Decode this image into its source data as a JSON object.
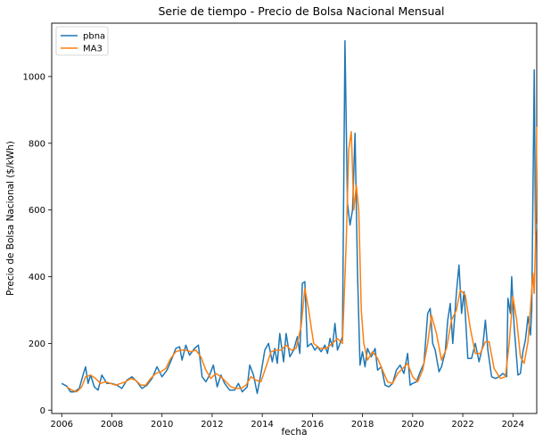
{
  "chart_data": {
    "type": "line",
    "title": "Serie de tiempo - Precio de Bolsa Nacional Mensual",
    "xlabel": "fecha",
    "ylabel": "Precio de Bolsa Nacional ($/kWh)",
    "xlim": [
      2005.6,
      2024.95
    ],
    "ylim": [
      -10,
      1160
    ],
    "x_ticks": [
      2006,
      2008,
      2010,
      2012,
      2014,
      2016,
      2018,
      2020,
      2022,
      2024
    ],
    "x_tick_labels": [
      "2006",
      "2008",
      "2010",
      "2012",
      "2014",
      "2016",
      "2018",
      "2020",
      "2022",
      "2024"
    ],
    "y_ticks": [
      0,
      200,
      400,
      600,
      800,
      1000
    ],
    "y_tick_labels": [
      "0",
      "200",
      "400",
      "600",
      "800",
      "1000"
    ],
    "grid": false,
    "legend": {
      "position": "top-left"
    },
    "series": [
      {
        "name": "pbna",
        "color": "#1f77b4",
        "points": [
          [
            2006.0,
            80
          ],
          [
            2006.2,
            72
          ],
          [
            2006.35,
            55
          ],
          [
            2006.5,
            55
          ],
          [
            2006.7,
            65
          ],
          [
            2006.85,
            105
          ],
          [
            2006.95,
            130
          ],
          [
            2007.05,
            80
          ],
          [
            2007.15,
            105
          ],
          [
            2007.3,
            70
          ],
          [
            2007.45,
            60
          ],
          [
            2007.6,
            105
          ],
          [
            2007.8,
            80
          ],
          [
            2008.0,
            80
          ],
          [
            2008.2,
            75
          ],
          [
            2008.4,
            65
          ],
          [
            2008.6,
            90
          ],
          [
            2008.8,
            100
          ],
          [
            2009.0,
            85
          ],
          [
            2009.2,
            65
          ],
          [
            2009.4,
            75
          ],
          [
            2009.6,
            95
          ],
          [
            2009.8,
            130
          ],
          [
            2010.0,
            100
          ],
          [
            2010.2,
            120
          ],
          [
            2010.4,
            155
          ],
          [
            2010.55,
            185
          ],
          [
            2010.7,
            190
          ],
          [
            2010.8,
            150
          ],
          [
            2010.95,
            195
          ],
          [
            2011.1,
            165
          ],
          [
            2011.3,
            185
          ],
          [
            2011.45,
            195
          ],
          [
            2011.6,
            100
          ],
          [
            2011.75,
            85
          ],
          [
            2011.9,
            105
          ],
          [
            2012.05,
            135
          ],
          [
            2012.2,
            70
          ],
          [
            2012.35,
            105
          ],
          [
            2012.5,
            80
          ],
          [
            2012.7,
            60
          ],
          [
            2012.9,
            60
          ],
          [
            2013.05,
            80
          ],
          [
            2013.2,
            55
          ],
          [
            2013.4,
            70
          ],
          [
            2013.5,
            135
          ],
          [
            2013.65,
            105
          ],
          [
            2013.8,
            50
          ],
          [
            2013.95,
            110
          ],
          [
            2014.1,
            180
          ],
          [
            2014.25,
            200
          ],
          [
            2014.4,
            145
          ],
          [
            2014.5,
            185
          ],
          [
            2014.6,
            140
          ],
          [
            2014.7,
            230
          ],
          [
            2014.85,
            145
          ],
          [
            2014.95,
            230
          ],
          [
            2015.1,
            160
          ],
          [
            2015.25,
            180
          ],
          [
            2015.4,
            220
          ],
          [
            2015.5,
            170
          ],
          [
            2015.6,
            380
          ],
          [
            2015.7,
            385
          ],
          [
            2015.8,
            190
          ],
          [
            2015.95,
            200
          ],
          [
            2016.1,
            180
          ],
          [
            2016.2,
            190
          ],
          [
            2016.35,
            175
          ],
          [
            2016.5,
            195
          ],
          [
            2016.6,
            170
          ],
          [
            2016.7,
            215
          ],
          [
            2016.8,
            190
          ],
          [
            2016.9,
            260
          ],
          [
            2017.0,
            180
          ],
          [
            2017.1,
            200
          ],
          [
            2017.2,
            220
          ],
          [
            2017.3,
            1107
          ],
          [
            2017.4,
            620
          ],
          [
            2017.5,
            555
          ],
          [
            2017.6,
            600
          ],
          [
            2017.7,
            830
          ],
          [
            2017.8,
            410
          ],
          [
            2017.9,
            135
          ],
          [
            2018.0,
            175
          ],
          [
            2018.1,
            130
          ],
          [
            2018.2,
            185
          ],
          [
            2018.35,
            160
          ],
          [
            2018.5,
            185
          ],
          [
            2018.6,
            120
          ],
          [
            2018.75,
            130
          ],
          [
            2018.9,
            75
          ],
          [
            2019.05,
            70
          ],
          [
            2019.2,
            80
          ],
          [
            2019.35,
            120
          ],
          [
            2019.5,
            135
          ],
          [
            2019.65,
            110
          ],
          [
            2019.8,
            170
          ],
          [
            2019.9,
            75
          ],
          [
            2020.0,
            80
          ],
          [
            2020.15,
            85
          ],
          [
            2020.3,
            115
          ],
          [
            2020.45,
            140
          ],
          [
            2020.6,
            290
          ],
          [
            2020.7,
            305
          ],
          [
            2020.8,
            200
          ],
          [
            2020.9,
            180
          ],
          [
            2021.05,
            115
          ],
          [
            2021.15,
            130
          ],
          [
            2021.3,
            175
          ],
          [
            2021.4,
            270
          ],
          [
            2021.5,
            320
          ],
          [
            2021.6,
            200
          ],
          [
            2021.75,
            355
          ],
          [
            2021.85,
            435
          ],
          [
            2021.95,
            290
          ],
          [
            2022.05,
            355
          ],
          [
            2022.2,
            155
          ],
          [
            2022.35,
            155
          ],
          [
            2022.5,
            200
          ],
          [
            2022.65,
            145
          ],
          [
            2022.8,
            195
          ],
          [
            2022.9,
            270
          ],
          [
            2023.0,
            180
          ],
          [
            2023.15,
            100
          ],
          [
            2023.3,
            95
          ],
          [
            2023.45,
            100
          ],
          [
            2023.6,
            110
          ],
          [
            2023.75,
            100
          ],
          [
            2023.8,
            335
          ],
          [
            2023.9,
            290
          ],
          [
            2023.95,
            400
          ],
          [
            2024.05,
            250
          ],
          [
            2024.2,
            105
          ],
          [
            2024.3,
            110
          ],
          [
            2024.4,
            175
          ],
          [
            2024.5,
            210
          ],
          [
            2024.6,
            280
          ],
          [
            2024.7,
            225
          ],
          [
            2024.75,
            300
          ],
          [
            2024.85,
            1020
          ],
          [
            2024.9,
            525
          ],
          [
            2024.95,
            560
          ]
        ]
      },
      {
        "name": "MA3",
        "color": "#ff7f0e",
        "points": [
          [
            2006.2,
            70
          ],
          [
            2006.4,
            60
          ],
          [
            2006.6,
            55
          ],
          [
            2006.8,
            70
          ],
          [
            2006.95,
            100
          ],
          [
            2007.15,
            105
          ],
          [
            2007.35,
            95
          ],
          [
            2007.55,
            80
          ],
          [
            2007.75,
            85
          ],
          [
            2007.95,
            80
          ],
          [
            2008.15,
            75
          ],
          [
            2008.35,
            80
          ],
          [
            2008.55,
            85
          ],
          [
            2008.75,
            95
          ],
          [
            2008.95,
            90
          ],
          [
            2009.15,
            75
          ],
          [
            2009.35,
            75
          ],
          [
            2009.55,
            95
          ],
          [
            2009.75,
            110
          ],
          [
            2009.95,
            115
          ],
          [
            2010.15,
            125
          ],
          [
            2010.35,
            155
          ],
          [
            2010.55,
            175
          ],
          [
            2010.75,
            180
          ],
          [
            2010.95,
            180
          ],
          [
            2011.15,
            175
          ],
          [
            2011.35,
            180
          ],
          [
            2011.55,
            160
          ],
          [
            2011.75,
            120
          ],
          [
            2011.95,
            95
          ],
          [
            2012.15,
            110
          ],
          [
            2012.35,
            100
          ],
          [
            2012.55,
            85
          ],
          [
            2012.75,
            70
          ],
          [
            2012.95,
            65
          ],
          [
            2013.15,
            65
          ],
          [
            2013.35,
            75
          ],
          [
            2013.55,
            100
          ],
          [
            2013.75,
            90
          ],
          [
            2013.95,
            85
          ],
          [
            2014.15,
            130
          ],
          [
            2014.35,
            175
          ],
          [
            2014.55,
            180
          ],
          [
            2014.75,
            180
          ],
          [
            2014.95,
            195
          ],
          [
            2015.15,
            180
          ],
          [
            2015.35,
            185
          ],
          [
            2015.55,
            250
          ],
          [
            2015.7,
            365
          ],
          [
            2015.85,
            300
          ],
          [
            2016.05,
            200
          ],
          [
            2016.3,
            185
          ],
          [
            2016.55,
            185
          ],
          [
            2016.8,
            200
          ],
          [
            2017.0,
            215
          ],
          [
            2017.2,
            200
          ],
          [
            2017.35,
            500
          ],
          [
            2017.45,
            780
          ],
          [
            2017.55,
            835
          ],
          [
            2017.65,
            600
          ],
          [
            2017.75,
            675
          ],
          [
            2017.85,
            600
          ],
          [
            2017.95,
            300
          ],
          [
            2018.05,
            200
          ],
          [
            2018.2,
            150
          ],
          [
            2018.4,
            175
          ],
          [
            2018.6,
            155
          ],
          [
            2018.8,
            120
          ],
          [
            2019.0,
            85
          ],
          [
            2019.2,
            80
          ],
          [
            2019.4,
            110
          ],
          [
            2019.6,
            125
          ],
          [
            2019.8,
            140
          ],
          [
            2020.0,
            100
          ],
          [
            2020.2,
            85
          ],
          [
            2020.4,
            120
          ],
          [
            2020.6,
            200
          ],
          [
            2020.75,
            285
          ],
          [
            2020.95,
            230
          ],
          [
            2021.15,
            150
          ],
          [
            2021.35,
            185
          ],
          [
            2021.55,
            270
          ],
          [
            2021.75,
            300
          ],
          [
            2021.9,
            360
          ],
          [
            2022.1,
            345
          ],
          [
            2022.3,
            245
          ],
          [
            2022.5,
            170
          ],
          [
            2022.7,
            170
          ],
          [
            2022.9,
            205
          ],
          [
            2023.05,
            205
          ],
          [
            2023.25,
            125
          ],
          [
            2023.5,
            95
          ],
          [
            2023.7,
            100
          ],
          [
            2023.85,
            200
          ],
          [
            2024.0,
            340
          ],
          [
            2024.15,
            270
          ],
          [
            2024.3,
            160
          ],
          [
            2024.45,
            140
          ],
          [
            2024.6,
            205
          ],
          [
            2024.8,
            410
          ],
          [
            2024.85,
            350
          ],
          [
            2024.9,
            500
          ],
          [
            2024.95,
            850
          ]
        ]
      }
    ]
  }
}
